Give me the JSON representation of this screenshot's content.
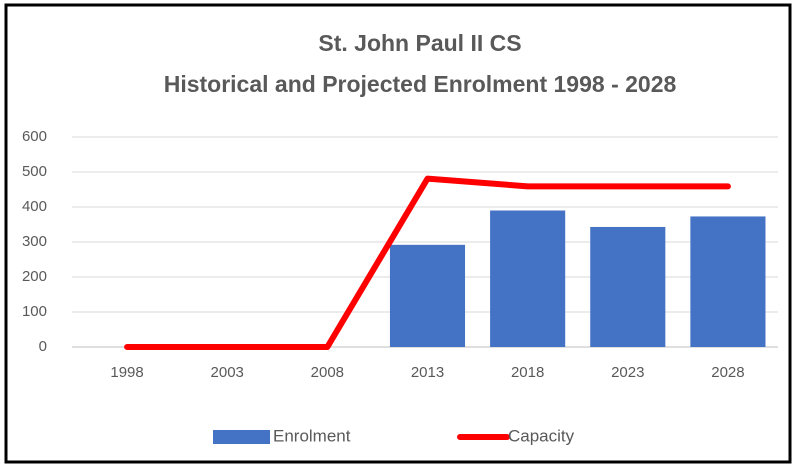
{
  "chart_data": {
    "type": "combo",
    "title": "St. John Paul II CS",
    "subtitle": "Historical and Projected Enrolment 1998 - 2028",
    "categories": [
      "1998",
      "2003",
      "2008",
      "2013",
      "2018",
      "2023",
      "2028"
    ],
    "series": [
      {
        "name": "Enrolment",
        "type": "bar",
        "color": "#4472c4",
        "values": [
          null,
          null,
          null,
          292,
          390,
          343,
          373
        ]
      },
      {
        "name": "Capacity",
        "type": "line",
        "color": "#ff0000",
        "values": [
          0,
          0,
          0,
          481,
          459,
          459,
          459
        ]
      }
    ],
    "ylim": [
      0,
      600
    ],
    "yticks": [
      0,
      100,
      200,
      300,
      400,
      500,
      600
    ],
    "grid": true,
    "legend": "bottom"
  }
}
